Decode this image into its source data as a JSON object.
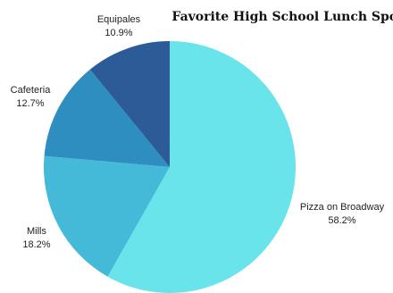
{
  "chart_data": {
    "type": "pie",
    "title": "Favorite High School Lunch Spot",
    "slices": [
      {
        "label": "Pizza on Broadway",
        "value": 58.2,
        "display": "58.2%",
        "color": "#68E4EA"
      },
      {
        "label": "Mills",
        "value": 18.2,
        "display": "18.2%",
        "color": "#45BAD8"
      },
      {
        "label": "Cafeteria",
        "value": 12.7,
        "display": "12.7%",
        "color": "#2E8EC0"
      },
      {
        "label": "Equipales",
        "value": 10.9,
        "display": "10.9%",
        "color": "#2C5B98"
      }
    ],
    "start_angle_deg": 0,
    "direction": "clockwise",
    "legend": "none"
  }
}
